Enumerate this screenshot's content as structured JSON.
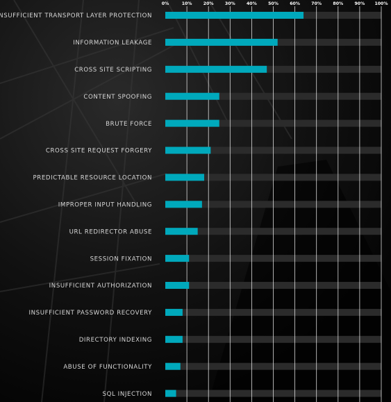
{
  "chart_data": {
    "type": "bar",
    "orientation": "horizontal",
    "categories": [
      "INSUFFICIENT TRANSPORT LAYER PROTECTION",
      "INFORMATION LEAKAGE",
      "CROSS SITE SCRIPTING",
      "CONTENT SPOOFING",
      "BRUTE FORCE",
      "CROSS SITE REQUEST FORGERY",
      "PREDICTABLE RESOURCE LOCATION",
      "IMPROPER INPUT HANDLING",
      "URL REDIRECTOR ABUSE",
      "SESSION FIXATION",
      "INSUFFICIENT AUTHORIZATION",
      "INSUFFICIENT PASSWORD RECOVERY",
      "DIRECTORY INDEXING",
      "ABUSE OF FUNCTIONALITY",
      "SQL INJECTION"
    ],
    "values": [
      64,
      52,
      47,
      25,
      25,
      21,
      18,
      17,
      15,
      11,
      11,
      8,
      8,
      7,
      5
    ],
    "xlim": [
      0,
      100
    ],
    "xticks": [
      "0%",
      "10%",
      "20%",
      "30%",
      "40%",
      "50%",
      "60%",
      "70%",
      "80%",
      "90%",
      "100%"
    ],
    "legend": "none",
    "grid": "vertical",
    "colors": {
      "bar": "#00a9bc",
      "track": "#2b2b2b",
      "grid": "#ffffff",
      "label": "#d8d8d8",
      "tick": "#ffffff"
    }
  }
}
